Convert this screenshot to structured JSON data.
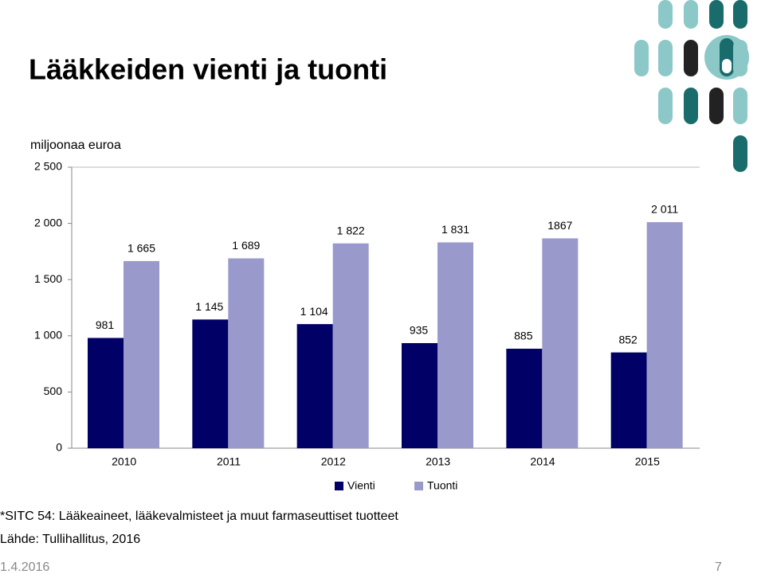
{
  "title": "Lääkkeiden vienti ja tuonti",
  "chart_data": {
    "type": "bar",
    "ylabel": "miljoonaa euroa",
    "categories": [
      "2010",
      "2011",
      "2012",
      "2013",
      "2014",
      "2015"
    ],
    "series": [
      {
        "name": "Vienti",
        "color": "#000066",
        "values": [
          981,
          1145,
          1104,
          935,
          885,
          852
        ],
        "value_labels": [
          "981",
          "1 145",
          "1 104",
          "935",
          "885",
          "852"
        ]
      },
      {
        "name": "Tuonti",
        "color": "#9999cc",
        "values": [
          1665,
          1689,
          1822,
          1831,
          1867,
          2011
        ],
        "value_labels": [
          "1 665",
          "1 689",
          "1 822",
          "1 831",
          "1867",
          "2 011"
        ]
      }
    ],
    "ylim": [
      0,
      2500
    ],
    "yticks": [
      {
        "value": 0,
        "label": "0"
      },
      {
        "value": 500,
        "label": "500"
      },
      {
        "value": 1000,
        "label": "1 000"
      },
      {
        "value": 1500,
        "label": "1 500"
      },
      {
        "value": 2000,
        "label": "2 000"
      },
      {
        "value": 2500,
        "label": "2 500"
      }
    ],
    "legend": "bottom"
  },
  "footnote": "*SITC 54: Lääkeaineet, lääkevalmisteet ja muut farmaseuttiset tuotteet",
  "source": "Lähde: Tullihallitus, 2016",
  "date": "1.4.2016",
  "page_number": "7"
}
